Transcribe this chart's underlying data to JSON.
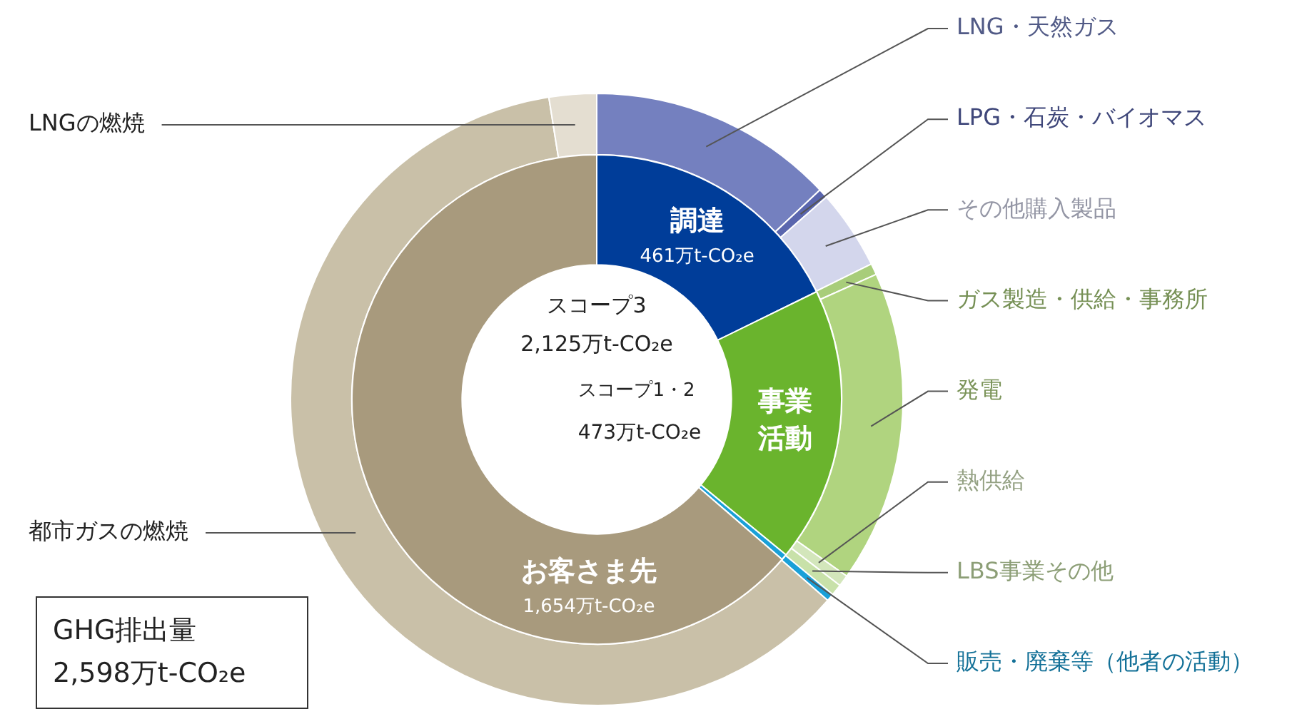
{
  "chart_data": [
    {
      "type": "donut",
      "categories": [
        "LNG・天然ガス",
        "LPG・石炭・バイオマス",
        "その他購入製品",
        "ガス製造・供給・事務所",
        "発電",
        "熱供給",
        "LBS事業その他",
        "販売・廃棄等（他者の活動）",
        "都市ガスの燃焼",
        "LNGの燃焼"
      ],
      "values": [
        13.0,
        0.5,
        4.2,
        0.6,
        16.5,
        0.6,
        0.6,
        0.4,
        61.1,
        2.5
      ],
      "colors": [
        "#7480bf",
        "#5a66ae",
        "#d3d6ec",
        "#a8cd7a",
        "#b0d47f",
        "#d3e6bb",
        "#c8e1a9",
        "#1aa0d8",
        "#c9c0a8",
        "#e4ded1"
      ],
      "legend": false
    },
    {
      "type": "donut",
      "categories": [
        "調達",
        "事業活動",
        null,
        "お客さま先"
      ],
      "values": [
        461,
        473,
        10,
        1654
      ],
      "colors": [
        "#003d99",
        "#6ab42d",
        "#1aa0d8",
        "#a89a7d"
      ],
      "value_labels": [
        "461万t-CO₂e",
        null,
        null,
        "1,654万t-CO₂e"
      ],
      "annotations": [
        "スコープ3",
        "2,125万t-CO₂e",
        "スコープ1・2",
        "473万t-CO₂e",
        "GHG排出量",
        "2,598万t-CO₂e"
      ],
      "legend": false
    }
  ]
}
